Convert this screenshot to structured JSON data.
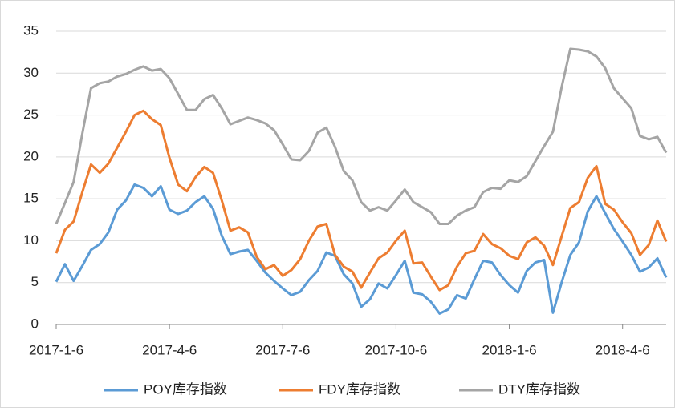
{
  "chart_data": {
    "type": "line",
    "categories": [
      "2017-1-6",
      null,
      null,
      null,
      null,
      null,
      null,
      null,
      null,
      null,
      null,
      null,
      null,
      "2017-4-6",
      null,
      null,
      null,
      null,
      null,
      null,
      null,
      null,
      null,
      null,
      null,
      null,
      "2017-7-6",
      null,
      null,
      null,
      null,
      null,
      null,
      null,
      null,
      null,
      null,
      null,
      null,
      "2017-10-6",
      null,
      null,
      null,
      null,
      null,
      null,
      null,
      null,
      null,
      null,
      null,
      null,
      "2018-1-6",
      null,
      null,
      null,
      null,
      null,
      null,
      null,
      null,
      null,
      null,
      null,
      null,
      "2018-4-6",
      null,
      null,
      null,
      null,
      null
    ],
    "series": [
      {
        "name": "POY库存指数",
        "color": "#5b9bd5",
        "values": [
          5.1,
          7.2,
          5.2,
          7.0,
          8.9,
          9.6,
          11.0,
          13.7,
          14.8,
          16.7,
          16.3,
          15.3,
          16.5,
          13.7,
          13.2,
          13.6,
          14.6,
          15.3,
          13.8,
          10.6,
          8.4,
          8.7,
          8.9,
          7.6,
          6.2,
          5.2,
          4.3,
          3.5,
          3.9,
          5.3,
          6.4,
          8.6,
          8.2,
          6.0,
          4.9,
          2.1,
          3.0,
          4.9,
          4.3,
          5.9,
          7.6,
          3.8,
          3.6,
          2.7,
          1.3,
          1.8,
          3.5,
          3.1,
          5.4,
          7.6,
          7.4,
          5.9,
          4.7,
          3.8,
          6.4,
          7.4,
          7.7,
          1.4,
          5.0,
          8.3,
          9.8,
          13.5,
          15.3,
          13.3,
          11.4,
          9.9,
          8.3,
          6.3,
          6.8,
          7.9,
          5.6
        ]
      },
      {
        "name": "FDY库存指数",
        "color": "#ed7d31",
        "values": [
          8.5,
          11.3,
          12.3,
          15.8,
          19.1,
          18.1,
          19.2,
          21.1,
          23.0,
          25.0,
          25.5,
          24.5,
          23.8,
          19.9,
          16.7,
          15.9,
          17.6,
          18.8,
          18.1,
          14.8,
          11.2,
          11.6,
          11.0,
          8.1,
          6.6,
          7.1,
          5.8,
          6.5,
          7.8,
          10.0,
          11.7,
          12.0,
          8.3,
          6.9,
          6.3,
          4.4,
          6.2,
          7.9,
          8.6,
          10.0,
          11.2,
          7.3,
          7.4,
          5.7,
          4.1,
          4.7,
          6.9,
          8.5,
          8.8,
          10.8,
          9.6,
          9.1,
          8.2,
          7.8,
          9.8,
          10.4,
          9.4,
          7.1,
          10.5,
          13.9,
          14.6,
          17.5,
          18.9,
          14.4,
          13.7,
          12.2,
          10.9,
          8.3,
          9.5,
          12.4,
          9.9
        ]
      },
      {
        "name": "DTY库存指数",
        "color": "#a5a5a5",
        "values": [
          12.0,
          14.5,
          17.0,
          22.8,
          28.2,
          28.8,
          29.0,
          29.6,
          29.9,
          30.4,
          30.8,
          30.3,
          30.5,
          29.4,
          27.5,
          25.6,
          25.6,
          26.9,
          27.4,
          25.8,
          23.9,
          24.3,
          24.7,
          24.4,
          24.0,
          23.2,
          21.5,
          19.7,
          19.6,
          20.7,
          22.9,
          23.5,
          21.2,
          18.3,
          17.2,
          14.6,
          13.6,
          14.0,
          13.6,
          14.8,
          16.1,
          14.6,
          14.0,
          13.4,
          12.0,
          12.0,
          13.0,
          13.6,
          14.0,
          15.8,
          16.3,
          16.2,
          17.2,
          17.0,
          17.7,
          19.5,
          21.3,
          23.0,
          28.3,
          32.9,
          32.8,
          32.6,
          32.0,
          30.6,
          28.2,
          27.0,
          25.8,
          22.5,
          22.1,
          22.4,
          20.5
        ]
      }
    ],
    "ylim": [
      0,
      35
    ],
    "yticks": [
      0,
      5,
      10,
      15,
      20,
      25,
      30,
      35
    ],
    "grid": true,
    "legend": "bottom"
  }
}
